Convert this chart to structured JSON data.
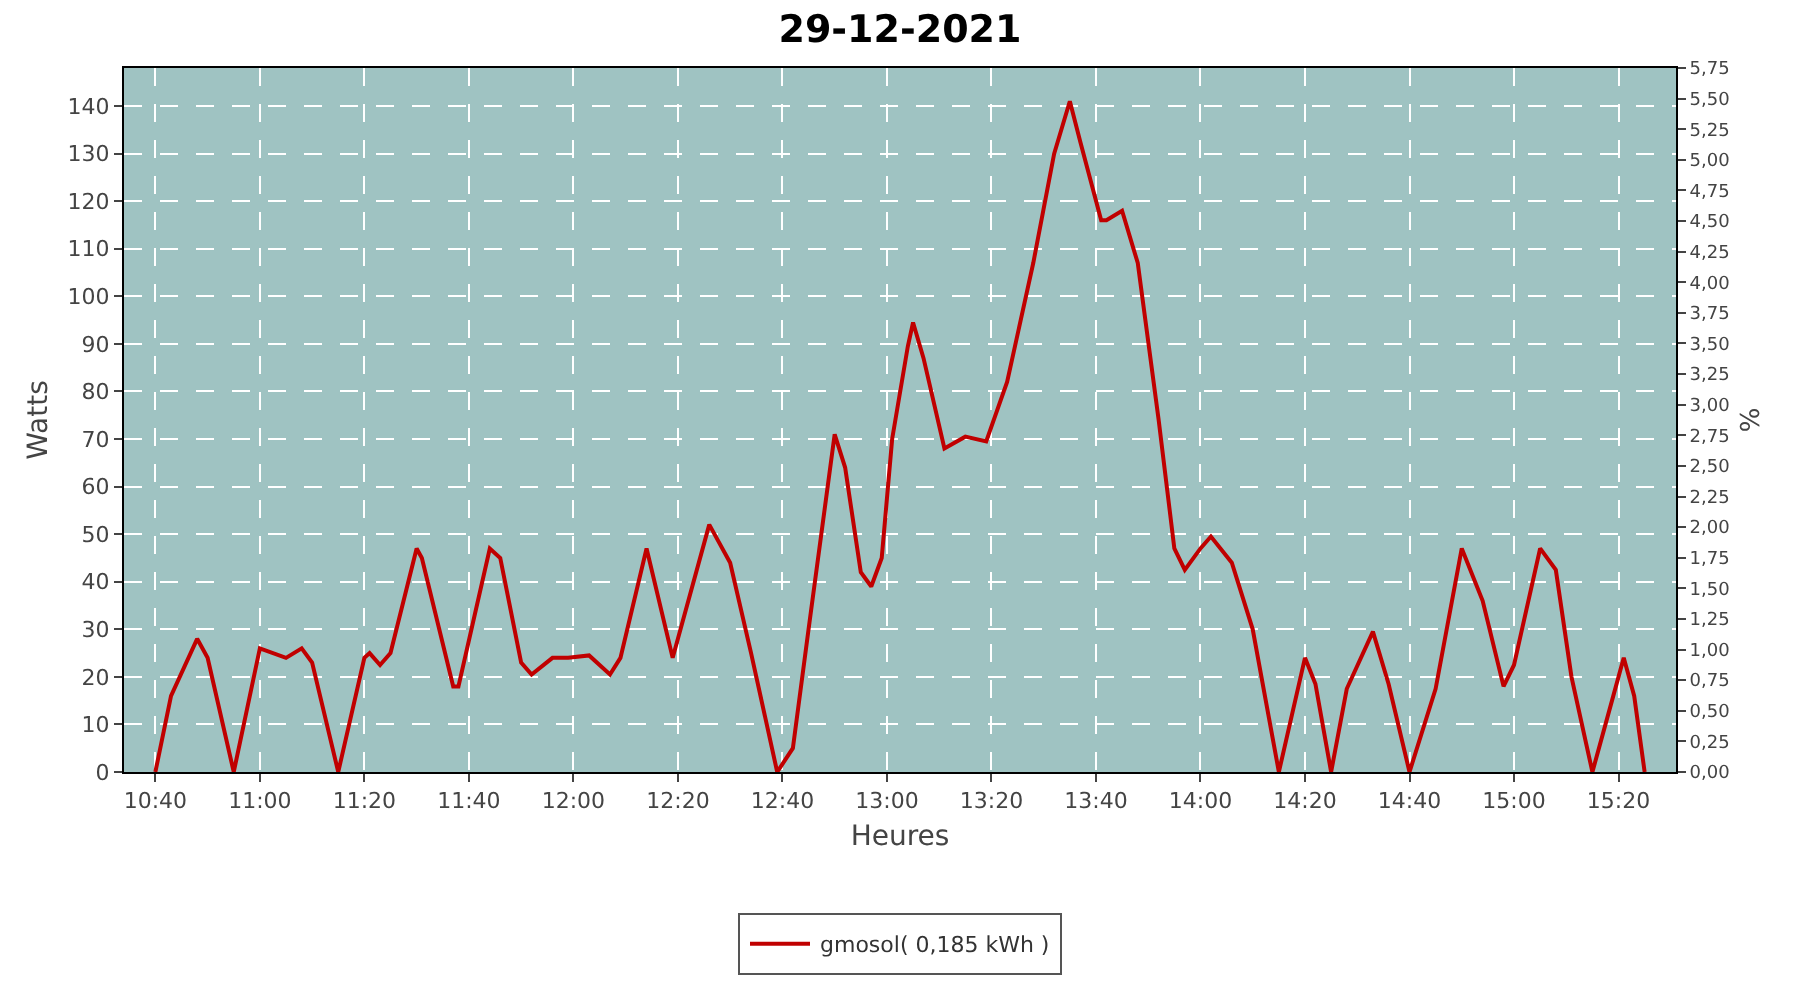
{
  "chart_data": {
    "type": "line",
    "title": "29-12-2021",
    "xlabel": "Heures",
    "ylabel": "Watts",
    "y2label": "%",
    "x": [
      "2021-12-29T10:40",
      "2021-12-29T10:43",
      "2021-12-29T10:48",
      "2021-12-29T10:50",
      "2021-12-29T10:55",
      "2021-12-29T11:00",
      "2021-12-29T11:05",
      "2021-12-29T11:08",
      "2021-12-29T11:10",
      "2021-12-29T11:15",
      "2021-12-29T11:20",
      "2021-12-29T11:21",
      "2021-12-29T11:23",
      "2021-12-29T11:25",
      "2021-12-29T11:30",
      "2021-12-29T11:31",
      "2021-12-29T11:37",
      "2021-12-29T11:38",
      "2021-12-29T11:44",
      "2021-12-29T11:46",
      "2021-12-29T11:50",
      "2021-12-29T11:52",
      "2021-12-29T11:56",
      "2021-12-29T11:59",
      "2021-12-29T12:03",
      "2021-12-29T12:07",
      "2021-12-29T12:09",
      "2021-12-29T12:14",
      "2021-12-29T12:19",
      "2021-12-29T12:26",
      "2021-12-29T12:30",
      "2021-12-29T12:34",
      "2021-12-29T12:39",
      "2021-12-29T12:42",
      "2021-12-29T12:45",
      "2021-12-29T12:50",
      "2021-12-29T12:52",
      "2021-12-29T12:55",
      "2021-12-29T12:57",
      "2021-12-29T12:59",
      "2021-12-29T13:01",
      "2021-12-29T13:04",
      "2021-12-29T13:05",
      "2021-12-29T13:07",
      "2021-12-29T13:11",
      "2021-12-29T13:15",
      "2021-12-29T13:19",
      "2021-12-29T13:23",
      "2021-12-29T13:28",
      "2021-12-29T13:32",
      "2021-12-29T13:35",
      "2021-12-29T13:37",
      "2021-12-29T13:41",
      "2021-12-29T13:42",
      "2021-12-29T13:45",
      "2021-12-29T13:48",
      "2021-12-29T13:52",
      "2021-12-29T13:55",
      "2021-12-29T13:57",
      "2021-12-29T14:00",
      "2021-12-29T14:02",
      "2021-12-29T14:06",
      "2021-12-29T14:10",
      "2021-12-29T14:15",
      "2021-12-29T14:20",
      "2021-12-29T14:22",
      "2021-12-29T14:25",
      "2021-12-29T14:28",
      "2021-12-29T14:33",
      "2021-12-29T14:36",
      "2021-12-29T14:40",
      "2021-12-29T14:45",
      "2021-12-29T14:50",
      "2021-12-29T14:54",
      "2021-12-29T14:58",
      "2021-12-29T15:00",
      "2021-12-29T15:05",
      "2021-12-29T15:08",
      "2021-12-29T15:11",
      "2021-12-29T15:15",
      "2021-12-29T15:19",
      "2021-12-29T15:21",
      "2021-12-29T15:23",
      "2021-12-29T15:25"
    ],
    "series": [
      {
        "name": "gmosol( 0,185 kWh )",
        "color": "#c00000",
        "values": [
          0,
          16,
          28,
          24,
          0,
          26,
          24,
          26,
          23,
          0,
          24,
          25,
          22.5,
          25,
          47,
          45,
          18,
          18,
          47,
          45,
          23,
          20.5,
          24,
          24,
          24.5,
          20.5,
          24,
          47,
          24,
          52,
          44,
          25,
          0,
          5,
          30,
          71,
          64,
          42,
          39,
          45,
          70,
          89.5,
          94.5,
          87,
          68,
          70.5,
          69.5,
          82,
          107,
          130,
          141,
          132.5,
          116,
          116,
          118,
          107,
          74,
          47,
          42.5,
          47,
          49.5,
          44,
          30,
          0,
          24,
          18.5,
          0,
          17.5,
          29.5,
          18.5,
          0,
          17.5,
          47,
          36,
          18,
          22.5,
          47,
          42.5,
          20,
          0,
          16,
          24,
          16,
          0
        ]
      }
    ],
    "xlim": [
      "2021-12-29T10:34",
      "2021-12-29T15:31"
    ],
    "xticks": [
      {
        "value": "2021-12-29T10:40",
        "label": "10:40"
      },
      {
        "value": "2021-12-29T11:00",
        "label": "11:00"
      },
      {
        "value": "2021-12-29T11:20",
        "label": "11:20"
      },
      {
        "value": "2021-12-29T11:40",
        "label": "11:40"
      },
      {
        "value": "2021-12-29T12:00",
        "label": "12:00"
      },
      {
        "value": "2021-12-29T12:20",
        "label": "12:20"
      },
      {
        "value": "2021-12-29T12:40",
        "label": "12:40"
      },
      {
        "value": "2021-12-29T13:00",
        "label": "13:00"
      },
      {
        "value": "2021-12-29T13:20",
        "label": "13:20"
      },
      {
        "value": "2021-12-29T13:40",
        "label": "13:40"
      },
      {
        "value": "2021-12-29T14:00",
        "label": "14:00"
      },
      {
        "value": "2021-12-29T14:20",
        "label": "14:20"
      },
      {
        "value": "2021-12-29T14:40",
        "label": "14:40"
      },
      {
        "value": "2021-12-29T15:00",
        "label": "15:00"
      },
      {
        "value": "2021-12-29T15:20",
        "label": "15:20"
      }
    ],
    "ylim": [
      0,
      148
    ],
    "yticks": [
      0,
      10,
      20,
      30,
      40,
      50,
      60,
      70,
      80,
      90,
      100,
      110,
      120,
      130,
      140
    ],
    "y2lim": [
      0,
      5.75
    ],
    "y2ticks": [
      {
        "value": 0,
        "label": "0,00"
      },
      {
        "value": 0.25,
        "label": "0,25"
      },
      {
        "value": 0.5,
        "label": "0,50"
      },
      {
        "value": 0.75,
        "label": "0,75"
      },
      {
        "value": 1,
        "label": "1,00"
      },
      {
        "value": 1.25,
        "label": "1,25"
      },
      {
        "value": 1.5,
        "label": "1,50"
      },
      {
        "value": 1.75,
        "label": "1,75"
      },
      {
        "value": 2,
        "label": "2,00"
      },
      {
        "value": 2.25,
        "label": "2,25"
      },
      {
        "value": 2.5,
        "label": "2,50"
      },
      {
        "value": 2.75,
        "label": "2,75"
      },
      {
        "value": 3,
        "label": "3,00"
      },
      {
        "value": 3.25,
        "label": "3,25"
      },
      {
        "value": 3.5,
        "label": "3,50"
      },
      {
        "value": 3.75,
        "label": "3,75"
      },
      {
        "value": 4,
        "label": "4,00"
      },
      {
        "value": 4.25,
        "label": "4,25"
      },
      {
        "value": 4.5,
        "label": "4,50"
      },
      {
        "value": 4.75,
        "label": "4,75"
      },
      {
        "value": 5,
        "label": "5,00"
      },
      {
        "value": 5.25,
        "label": "5,25"
      },
      {
        "value": 5.5,
        "label": "5,50"
      },
      {
        "value": 5.75,
        "label": "5,75"
      }
    ],
    "grid": true,
    "legend": "bottom",
    "marker": "none",
    "line_style": "solid"
  }
}
